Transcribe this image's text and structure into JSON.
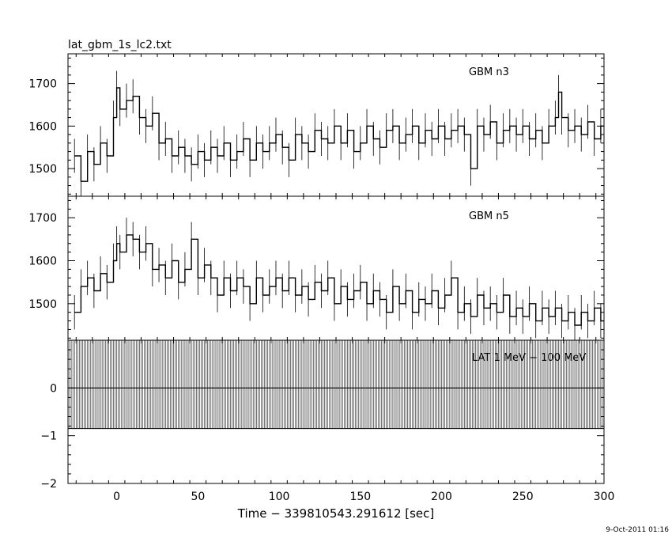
{
  "chart_data": [
    {
      "type": "line",
      "title": "lat_gbm_1s_lc2.txt",
      "panel_label": "GBM n3",
      "xlim": [
        -30,
        300
      ],
      "ylim": [
        1435,
        1770
      ],
      "yticks": [
        1500,
        1600,
        1700
      ],
      "series": [
        {
          "x": [
            -26,
            -22,
            -18,
            -14,
            -10,
            -6,
            -2,
            0,
            2,
            6,
            10,
            14,
            18,
            22,
            26,
            30,
            34,
            38,
            42,
            46,
            50,
            54,
            58,
            62,
            66,
            70,
            74,
            78,
            82,
            86,
            90,
            94,
            98,
            102,
            106,
            110,
            114,
            118,
            122,
            126,
            130,
            134,
            138,
            142,
            146,
            150,
            154,
            158,
            162,
            166,
            170,
            174,
            178,
            182,
            186,
            190,
            194,
            198,
            202,
            206,
            210,
            214,
            218,
            222,
            226,
            230,
            234,
            238,
            242,
            246,
            250,
            254,
            258,
            262,
            266,
            270,
            272,
            274,
            278,
            282,
            286,
            290,
            294,
            298
          ],
          "y": [
            1530,
            1470,
            1540,
            1510,
            1560,
            1530,
            1620,
            1690,
            1640,
            1660,
            1670,
            1620,
            1600,
            1630,
            1560,
            1570,
            1530,
            1550,
            1530,
            1510,
            1540,
            1520,
            1550,
            1530,
            1560,
            1520,
            1540,
            1570,
            1520,
            1560,
            1540,
            1560,
            1580,
            1550,
            1520,
            1580,
            1560,
            1540,
            1590,
            1570,
            1560,
            1600,
            1560,
            1590,
            1540,
            1560,
            1600,
            1570,
            1550,
            1590,
            1600,
            1560,
            1580,
            1600,
            1560,
            1590,
            1570,
            1600,
            1570,
            1590,
            1600,
            1580,
            1500,
            1600,
            1580,
            1610,
            1560,
            1590,
            1600,
            1580,
            1600,
            1570,
            1590,
            1560,
            1600,
            1620,
            1680,
            1620,
            1590,
            1600,
            1580,
            1610,
            1570,
            1600
          ]
        }
      ]
    },
    {
      "type": "line",
      "panel_label": "GBM n5",
      "xlim": [
        -30,
        300
      ],
      "ylim": [
        1415,
        1750
      ],
      "yticks": [
        1500,
        1600,
        1700
      ],
      "series": [
        {
          "x": [
            -26,
            -22,
            -18,
            -14,
            -10,
            -6,
            -2,
            0,
            2,
            6,
            10,
            14,
            18,
            22,
            26,
            30,
            34,
            38,
            42,
            46,
            50,
            54,
            58,
            62,
            66,
            70,
            74,
            78,
            82,
            86,
            90,
            94,
            98,
            102,
            106,
            110,
            114,
            118,
            122,
            126,
            130,
            134,
            138,
            142,
            146,
            150,
            154,
            158,
            162,
            166,
            170,
            174,
            178,
            182,
            186,
            190,
            194,
            198,
            202,
            206,
            210,
            214,
            218,
            222,
            226,
            230,
            234,
            238,
            242,
            246,
            250,
            254,
            258,
            262,
            266,
            270,
            274,
            278,
            282,
            286,
            290,
            294,
            298
          ],
          "y": [
            1480,
            1540,
            1560,
            1530,
            1570,
            1550,
            1600,
            1640,
            1620,
            1660,
            1650,
            1620,
            1640,
            1580,
            1590,
            1560,
            1600,
            1550,
            1580,
            1650,
            1560,
            1590,
            1560,
            1520,
            1560,
            1530,
            1560,
            1540,
            1500,
            1560,
            1520,
            1540,
            1560,
            1530,
            1560,
            1520,
            1540,
            1510,
            1550,
            1530,
            1560,
            1500,
            1540,
            1510,
            1530,
            1550,
            1500,
            1530,
            1510,
            1480,
            1540,
            1500,
            1530,
            1480,
            1510,
            1500,
            1530,
            1490,
            1520,
            1560,
            1480,
            1500,
            1470,
            1520,
            1490,
            1500,
            1480,
            1520,
            1470,
            1490,
            1470,
            1500,
            1460,
            1490,
            1470,
            1490,
            1460,
            1480,
            1450,
            1480,
            1460,
            1490,
            1460
          ]
        }
      ]
    },
    {
      "type": "bar",
      "panel_label": "LAT 1 MeV − 100 MeV",
      "xlim": [
        -30,
        300
      ],
      "ylim": [
        -2,
        1
      ],
      "yticks": [
        -2,
        -1,
        0
      ],
      "xticks": [
        0,
        50,
        100,
        150,
        200,
        250,
        300
      ],
      "xlabel": "Time − 339810543.291612 [sec]",
      "values_all_x": 0,
      "error_band": [
        -0.85,
        1
      ]
    }
  ],
  "timestamp": "9-Oct-2011 01:16"
}
